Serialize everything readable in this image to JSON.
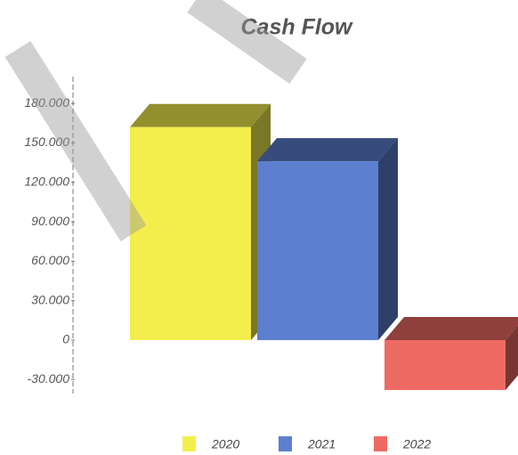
{
  "chart_data": {
    "type": "bar3d",
    "title": "Cash Flow",
    "series": [
      {
        "name": "2020",
        "color": "#f4ee4c",
        "values": [
          162000
        ]
      },
      {
        "name": "2021",
        "color": "#5c7fcf",
        "values": [
          136000
        ]
      },
      {
        "name": "2022",
        "color": "#ee6b64",
        "values": [
          -38000
        ]
      }
    ],
    "ylim": [
      -40000,
      198000
    ],
    "yticks": [
      {
        "value": -30000,
        "label": "-30.000"
      },
      0,
      {
        "value": 30000,
        "label": "30.000"
      },
      {
        "value": 60000,
        "label": "60.000"
      },
      {
        "value": 90000,
        "label": "90.000"
      },
      {
        "value": 120000,
        "label": "120.000"
      },
      {
        "value": 150000,
        "label": "150.000"
      },
      {
        "value": 180000,
        "label": "180.000"
      }
    ],
    "legend": "bottom"
  }
}
